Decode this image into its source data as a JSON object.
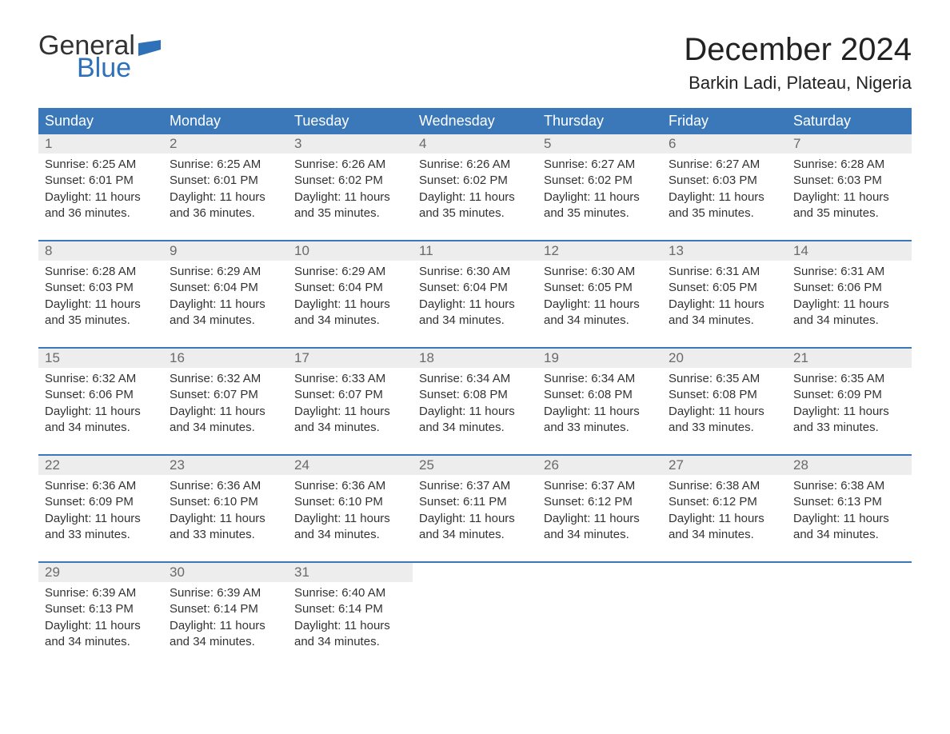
{
  "logo": {
    "word1": "General",
    "word2": "Blue",
    "flag_color": "#2f71b8"
  },
  "colors": {
    "header_bg": "#3a78b9",
    "header_text": "#ffffff",
    "daynum_bg": "#ededed",
    "daynum_text": "#6a6a6a",
    "body_text": "#333333",
    "accent": "#2f71b8",
    "page_bg": "#ffffff"
  },
  "title": "December 2024",
  "location": "Barkin Ladi, Plateau, Nigeria",
  "weekday_labels": [
    "Sunday",
    "Monday",
    "Tuesday",
    "Wednesday",
    "Thursday",
    "Friday",
    "Saturday"
  ],
  "labels": {
    "sunrise": "Sunrise:",
    "sunset": "Sunset:",
    "daylight": "Daylight:"
  },
  "weeks": [
    [
      {
        "n": "1",
        "sunrise": "6:25 AM",
        "sunset": "6:01 PM",
        "daylight": "11 hours and 36 minutes."
      },
      {
        "n": "2",
        "sunrise": "6:25 AM",
        "sunset": "6:01 PM",
        "daylight": "11 hours and 36 minutes."
      },
      {
        "n": "3",
        "sunrise": "6:26 AM",
        "sunset": "6:02 PM",
        "daylight": "11 hours and 35 minutes."
      },
      {
        "n": "4",
        "sunrise": "6:26 AM",
        "sunset": "6:02 PM",
        "daylight": "11 hours and 35 minutes."
      },
      {
        "n": "5",
        "sunrise": "6:27 AM",
        "sunset": "6:02 PM",
        "daylight": "11 hours and 35 minutes."
      },
      {
        "n": "6",
        "sunrise": "6:27 AM",
        "sunset": "6:03 PM",
        "daylight": "11 hours and 35 minutes."
      },
      {
        "n": "7",
        "sunrise": "6:28 AM",
        "sunset": "6:03 PM",
        "daylight": "11 hours and 35 minutes."
      }
    ],
    [
      {
        "n": "8",
        "sunrise": "6:28 AM",
        "sunset": "6:03 PM",
        "daylight": "11 hours and 35 minutes."
      },
      {
        "n": "9",
        "sunrise": "6:29 AM",
        "sunset": "6:04 PM",
        "daylight": "11 hours and 34 minutes."
      },
      {
        "n": "10",
        "sunrise": "6:29 AM",
        "sunset": "6:04 PM",
        "daylight": "11 hours and 34 minutes."
      },
      {
        "n": "11",
        "sunrise": "6:30 AM",
        "sunset": "6:04 PM",
        "daylight": "11 hours and 34 minutes."
      },
      {
        "n": "12",
        "sunrise": "6:30 AM",
        "sunset": "6:05 PM",
        "daylight": "11 hours and 34 minutes."
      },
      {
        "n": "13",
        "sunrise": "6:31 AM",
        "sunset": "6:05 PM",
        "daylight": "11 hours and 34 minutes."
      },
      {
        "n": "14",
        "sunrise": "6:31 AM",
        "sunset": "6:06 PM",
        "daylight": "11 hours and 34 minutes."
      }
    ],
    [
      {
        "n": "15",
        "sunrise": "6:32 AM",
        "sunset": "6:06 PM",
        "daylight": "11 hours and 34 minutes."
      },
      {
        "n": "16",
        "sunrise": "6:32 AM",
        "sunset": "6:07 PM",
        "daylight": "11 hours and 34 minutes."
      },
      {
        "n": "17",
        "sunrise": "6:33 AM",
        "sunset": "6:07 PM",
        "daylight": "11 hours and 34 minutes."
      },
      {
        "n": "18",
        "sunrise": "6:34 AM",
        "sunset": "6:08 PM",
        "daylight": "11 hours and 34 minutes."
      },
      {
        "n": "19",
        "sunrise": "6:34 AM",
        "sunset": "6:08 PM",
        "daylight": "11 hours and 33 minutes."
      },
      {
        "n": "20",
        "sunrise": "6:35 AM",
        "sunset": "6:08 PM",
        "daylight": "11 hours and 33 minutes."
      },
      {
        "n": "21",
        "sunrise": "6:35 AM",
        "sunset": "6:09 PM",
        "daylight": "11 hours and 33 minutes."
      }
    ],
    [
      {
        "n": "22",
        "sunrise": "6:36 AM",
        "sunset": "6:09 PM",
        "daylight": "11 hours and 33 minutes."
      },
      {
        "n": "23",
        "sunrise": "6:36 AM",
        "sunset": "6:10 PM",
        "daylight": "11 hours and 33 minutes."
      },
      {
        "n": "24",
        "sunrise": "6:36 AM",
        "sunset": "6:10 PM",
        "daylight": "11 hours and 34 minutes."
      },
      {
        "n": "25",
        "sunrise": "6:37 AM",
        "sunset": "6:11 PM",
        "daylight": "11 hours and 34 minutes."
      },
      {
        "n": "26",
        "sunrise": "6:37 AM",
        "sunset": "6:12 PM",
        "daylight": "11 hours and 34 minutes."
      },
      {
        "n": "27",
        "sunrise": "6:38 AM",
        "sunset": "6:12 PM",
        "daylight": "11 hours and 34 minutes."
      },
      {
        "n": "28",
        "sunrise": "6:38 AM",
        "sunset": "6:13 PM",
        "daylight": "11 hours and 34 minutes."
      }
    ],
    [
      {
        "n": "29",
        "sunrise": "6:39 AM",
        "sunset": "6:13 PM",
        "daylight": "11 hours and 34 minutes."
      },
      {
        "n": "30",
        "sunrise": "6:39 AM",
        "sunset": "6:14 PM",
        "daylight": "11 hours and 34 minutes."
      },
      {
        "n": "31",
        "sunrise": "6:40 AM",
        "sunset": "6:14 PM",
        "daylight": "11 hours and 34 minutes."
      },
      null,
      null,
      null,
      null
    ]
  ]
}
